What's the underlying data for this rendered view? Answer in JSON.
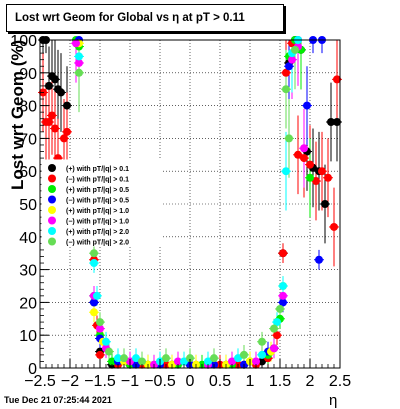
{
  "chart_data": {
    "type": "scatter",
    "title": "Lost wrt Geom for Global vs   η at pT > 0.11",
    "xlabel": "η",
    "ylabel": "Lost wrt Geom (%)",
    "xlim": [
      -2.5,
      2.5
    ],
    "ylim": [
      0,
      100
    ],
    "x_ticks": [
      "−2.5",
      "−2",
      "−1.5",
      "−1",
      "−0.5",
      "0",
      "0.5",
      "1",
      "1.5",
      "2",
      "2.5"
    ],
    "y_ticks": [
      "0",
      "10",
      "20",
      "30",
      "40",
      "50",
      "60",
      "70",
      "80",
      "90",
      "100"
    ],
    "grid": true,
    "legend_position": "left",
    "series": [
      {
        "name": "(+) with pT/|q| > 0.1",
        "color": "#000000",
        "points": [
          [
            -2.45,
            100
          ],
          [
            -2.4,
            100
          ],
          [
            -2.35,
            86
          ],
          [
            -2.3,
            89
          ],
          [
            -2.25,
            88
          ],
          [
            -2.2,
            85
          ],
          [
            -2.15,
            84
          ],
          [
            -2.05,
            80
          ],
          [
            -1.6,
            20
          ],
          [
            -1.5,
            5
          ],
          [
            -1.3,
            1
          ],
          [
            -1.0,
            1
          ],
          [
            -0.7,
            1
          ],
          [
            -0.3,
            1
          ],
          [
            0.0,
            1
          ],
          [
            0.3,
            1
          ],
          [
            0.6,
            1
          ],
          [
            0.9,
            1
          ],
          [
            1.2,
            2
          ],
          [
            1.4,
            6
          ],
          [
            1.55,
            35
          ],
          [
            1.65,
            93
          ],
          [
            1.75,
            100
          ],
          [
            1.85,
            97
          ],
          [
            1.95,
            66
          ],
          [
            2.05,
            61
          ],
          [
            2.15,
            60
          ],
          [
            2.25,
            50
          ],
          [
            2.35,
            75
          ],
          [
            2.45,
            75
          ]
        ]
      },
      {
        "name": "(−) with pT/|q| > 0.1",
        "color": "#ff0000",
        "points": [
          [
            -2.45,
            84
          ],
          [
            -2.4,
            75
          ],
          [
            -2.35,
            75
          ],
          [
            -2.3,
            77
          ],
          [
            -2.25,
            73
          ],
          [
            -2.2,
            64
          ],
          [
            -2.1,
            70
          ],
          [
            -2.05,
            72
          ],
          [
            -1.6,
            33
          ],
          [
            -1.55,
            13
          ],
          [
            -1.5,
            4
          ],
          [
            -1.2,
            1
          ],
          [
            -0.8,
            1
          ],
          [
            -0.4,
            1
          ],
          [
            0.1,
            1
          ],
          [
            0.5,
            1
          ],
          [
            0.8,
            1
          ],
          [
            1.1,
            1
          ],
          [
            1.3,
            3
          ],
          [
            1.45,
            10
          ],
          [
            1.55,
            35
          ],
          [
            1.6,
            90
          ],
          [
            1.7,
            99
          ],
          [
            1.8,
            65
          ],
          [
            1.9,
            64
          ],
          [
            2.0,
            62
          ],
          [
            2.1,
            57
          ],
          [
            2.2,
            60
          ],
          [
            2.3,
            58
          ],
          [
            2.4,
            43
          ],
          [
            2.45,
            88
          ]
        ]
      },
      {
        "name": "(+) with pT/|q| > 0.5",
        "color": "#00ee00",
        "points": [
          [
            -1.9,
            100
          ],
          [
            -1.85,
            98
          ],
          [
            -1.6,
            22
          ],
          [
            -1.5,
            10
          ],
          [
            -1.3,
            2
          ],
          [
            -1.0,
            1
          ],
          [
            -0.6,
            1
          ],
          [
            -0.2,
            1
          ],
          [
            0.2,
            1
          ],
          [
            0.7,
            1
          ],
          [
            1.0,
            2
          ],
          [
            1.3,
            4
          ],
          [
            1.5,
            15
          ],
          [
            1.65,
            95
          ],
          [
            1.75,
            100
          ],
          [
            1.85,
            97
          ],
          [
            2.0,
            58
          ]
        ]
      },
      {
        "name": "(−) with pT/|q| > 0.5",
        "color": "#0000ff",
        "points": [
          [
            -1.85,
            100
          ],
          [
            -1.6,
            20
          ],
          [
            -1.5,
            9
          ],
          [
            -1.2,
            2
          ],
          [
            -0.9,
            1
          ],
          [
            -0.5,
            1
          ],
          [
            0.0,
            1
          ],
          [
            0.4,
            1
          ],
          [
            0.9,
            1
          ],
          [
            1.3,
            5
          ],
          [
            1.55,
            20
          ],
          [
            1.65,
            92
          ],
          [
            1.8,
            100
          ],
          [
            1.95,
            80
          ],
          [
            2.05,
            100
          ],
          [
            2.15,
            33
          ],
          [
            2.2,
            100
          ]
        ]
      },
      {
        "name": "(+) with pT/|q| > 1.0",
        "color": "#ffff00",
        "points": [
          [
            -1.85,
            99
          ],
          [
            -1.6,
            17
          ],
          [
            -1.45,
            8
          ],
          [
            -1.1,
            2
          ],
          [
            -0.7,
            1
          ],
          [
            -0.3,
            1
          ],
          [
            0.1,
            1
          ],
          [
            0.6,
            1
          ],
          [
            1.0,
            2
          ],
          [
            1.35,
            5
          ],
          [
            1.55,
            25
          ],
          [
            1.7,
            96
          ]
        ]
      },
      {
        "name": "(−) with pT/|q| > 1.0",
        "color": "#ff00ff",
        "points": [
          [
            -1.9,
            99
          ],
          [
            -1.85,
            93
          ],
          [
            -1.6,
            22
          ],
          [
            -1.5,
            12
          ],
          [
            -1.4,
            6
          ],
          [
            -1.0,
            2
          ],
          [
            -0.6,
            1
          ],
          [
            -0.2,
            2
          ],
          [
            0.3,
            1
          ],
          [
            0.7,
            2
          ],
          [
            1.1,
            2
          ],
          [
            1.4,
            6
          ],
          [
            1.55,
            22
          ],
          [
            1.7,
            94
          ],
          [
            1.8,
            98
          ],
          [
            1.9,
            67
          ]
        ]
      },
      {
        "name": "(+) with pT/|q| > 2.0",
        "color": "#00ffff",
        "points": [
          [
            -1.85,
            95
          ],
          [
            -1.6,
            32
          ],
          [
            -1.55,
            22
          ],
          [
            -1.4,
            8
          ],
          [
            -1.2,
            3
          ],
          [
            -0.9,
            3
          ],
          [
            -0.5,
            2
          ],
          [
            -0.1,
            2
          ],
          [
            0.3,
            2
          ],
          [
            0.8,
            3
          ],
          [
            1.2,
            4
          ],
          [
            1.45,
            14
          ],
          [
            1.55,
            25
          ],
          [
            1.6,
            60
          ],
          [
            1.7,
            96
          ],
          [
            1.8,
            100
          ]
        ]
      },
      {
        "name": "(−) with pT/|q| > 2.0",
        "color": "#66dd55",
        "points": [
          [
            -1.85,
            90
          ],
          [
            -1.6,
            35
          ],
          [
            -1.5,
            14
          ],
          [
            -1.35,
            5
          ],
          [
            -1.1,
            3
          ],
          [
            -0.8,
            2
          ],
          [
            -0.4,
            3
          ],
          [
            0.0,
            3
          ],
          [
            0.4,
            3
          ],
          [
            0.9,
            4
          ],
          [
            1.2,
            8
          ],
          [
            1.4,
            12
          ],
          [
            1.5,
            18
          ],
          [
            1.6,
            85
          ],
          [
            1.65,
            70
          ],
          [
            1.75,
            97
          ]
        ]
      }
    ]
  },
  "footer": "Tue Dec 21 07:25:44 2021"
}
